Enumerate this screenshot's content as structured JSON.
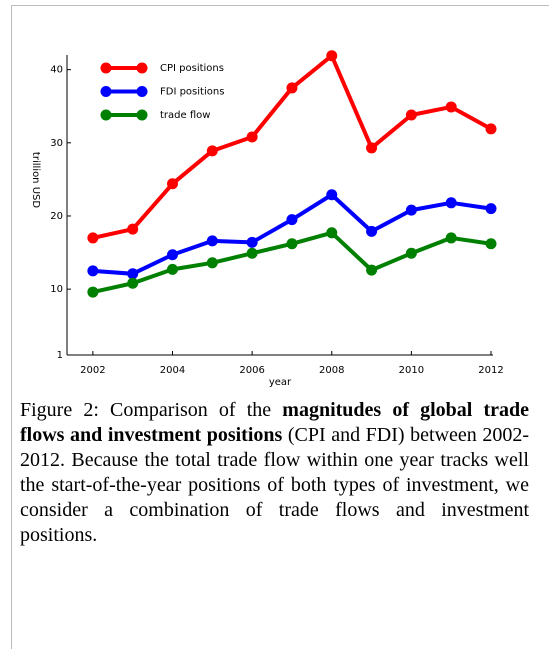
{
  "chart_data": {
    "type": "line",
    "x": [
      2002,
      2003,
      2004,
      2005,
      2006,
      2007,
      2008,
      2009,
      2010,
      2011,
      2012
    ],
    "series": [
      {
        "name": "CPI positions",
        "color": "#ff0000",
        "values": [
          17.0,
          18.2,
          24.4,
          28.9,
          30.8,
          37.5,
          41.9,
          29.3,
          33.8,
          34.9,
          31.9
        ]
      },
      {
        "name": "FDI positions",
        "color": "#0000ff",
        "values": [
          12.5,
          12.1,
          14.7,
          16.6,
          16.4,
          19.5,
          22.9,
          17.9,
          20.8,
          21.8,
          21.0
        ]
      },
      {
        "name": "trade flow",
        "color": "#008000",
        "values": [
          9.6,
          10.8,
          12.7,
          13.6,
          14.9,
          16.2,
          17.7,
          12.6,
          14.9,
          17.0,
          16.2
        ]
      }
    ],
    "xlabel": "year",
    "ylabel": "trillion USD",
    "xlim": [
      2001.35,
      2012.05
    ],
    "xticks": [
      2002,
      2004,
      2006,
      2008,
      2010,
      2012
    ],
    "ylim": [
      1,
      42
    ],
    "yticks": [
      1,
      10,
      20,
      30,
      40
    ],
    "legend": "upper-left"
  },
  "caption": {
    "label": "Figure 2:",
    "parts": [
      {
        "text": " Comparison of the ",
        "bold": false
      },
      {
        "text": "magnitudes of global trade flows and investment positions",
        "bold": true
      },
      {
        "text": " (CPI and FDI) between 2002-2012. Because the total trade flow within one year tracks well the start-of-the-year positions of both types of investment, we consider a combination of trade flows and investment positions.",
        "bold": false
      }
    ]
  }
}
